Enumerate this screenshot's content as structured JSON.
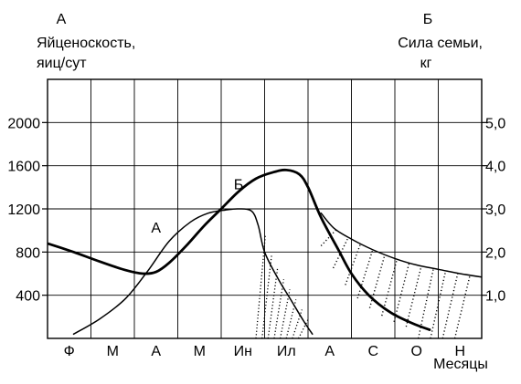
{
  "chart_data": {
    "type": "line",
    "left_axis": {
      "letter": "А",
      "label_line1": "Яйценоскость,",
      "label_line2": "яиц/сут",
      "ylim": [
        0,
        2400
      ],
      "ticks": [
        {
          "v": 400,
          "label": "400"
        },
        {
          "v": 800,
          "label": "800"
        },
        {
          "v": 1200,
          "label": "1200"
        },
        {
          "v": 1600,
          "label": "1600"
        },
        {
          "v": 2000,
          "label": "2000"
        }
      ]
    },
    "right_axis": {
      "letter": "Б",
      "label_line1": "Сила семьи,",
      "label_line2": "кг",
      "ylim": [
        0,
        6
      ],
      "ticks": [
        {
          "v": 1,
          "label": "1,0"
        },
        {
          "v": 2,
          "label": "2,0"
        },
        {
          "v": 3,
          "label": "3,0"
        },
        {
          "v": 4,
          "label": "4,0"
        },
        {
          "v": 5,
          "label": "5,0"
        }
      ]
    },
    "months": [
      "Ф",
      "М",
      "А",
      "М",
      "Ин",
      "Ил",
      "А",
      "С",
      "О",
      "Н"
    ],
    "xlabel": "Месяцы",
    "xlim": [
      0,
      10
    ],
    "grid": true,
    "series": [
      {
        "name": "А",
        "axis": "left",
        "label_at": [
          2.5,
          980
        ],
        "points": [
          [
            0.6,
            40
          ],
          [
            1.2,
            180
          ],
          [
            1.8,
            370
          ],
          [
            2.3,
            620
          ],
          [
            2.8,
            900
          ],
          [
            3.3,
            1080
          ],
          [
            3.7,
            1160
          ],
          [
            4.1,
            1190
          ],
          [
            4.4,
            1200
          ],
          [
            4.7,
            1180
          ],
          [
            4.85,
            1050
          ],
          [
            5.0,
            800
          ],
          [
            5.3,
            560
          ],
          [
            5.6,
            360
          ],
          [
            5.9,
            160
          ],
          [
            6.1,
            40
          ]
        ]
      },
      {
        "name": "Б",
        "axis": "right",
        "label_at": [
          4.4,
          3.45
        ],
        "points": [
          [
            0.0,
            2.2
          ],
          [
            0.6,
            2.0
          ],
          [
            1.2,
            1.78
          ],
          [
            1.8,
            1.58
          ],
          [
            2.2,
            1.5
          ],
          [
            2.5,
            1.54
          ],
          [
            2.8,
            1.75
          ],
          [
            3.2,
            2.15
          ],
          [
            3.6,
            2.6
          ],
          [
            4.0,
            3.0
          ],
          [
            4.4,
            3.4
          ],
          [
            4.8,
            3.7
          ],
          [
            5.2,
            3.85
          ],
          [
            5.5,
            3.9
          ],
          [
            5.8,
            3.8
          ],
          [
            6.0,
            3.5
          ],
          [
            6.3,
            2.8
          ],
          [
            6.7,
            2.05
          ],
          [
            7.0,
            1.5
          ],
          [
            7.4,
            1.0
          ],
          [
            7.9,
            0.6
          ],
          [
            8.4,
            0.35
          ],
          [
            8.8,
            0.2
          ]
        ]
      },
      {
        "name": "",
        "axis": "right",
        "points": [
          [
            6.3,
            2.9
          ],
          [
            6.6,
            2.55
          ],
          [
            7.0,
            2.3
          ],
          [
            7.5,
            2.05
          ],
          [
            8.0,
            1.85
          ],
          [
            8.5,
            1.7
          ],
          [
            9.0,
            1.6
          ],
          [
            9.5,
            1.5
          ],
          [
            10.0,
            1.42
          ]
        ]
      }
    ]
  }
}
